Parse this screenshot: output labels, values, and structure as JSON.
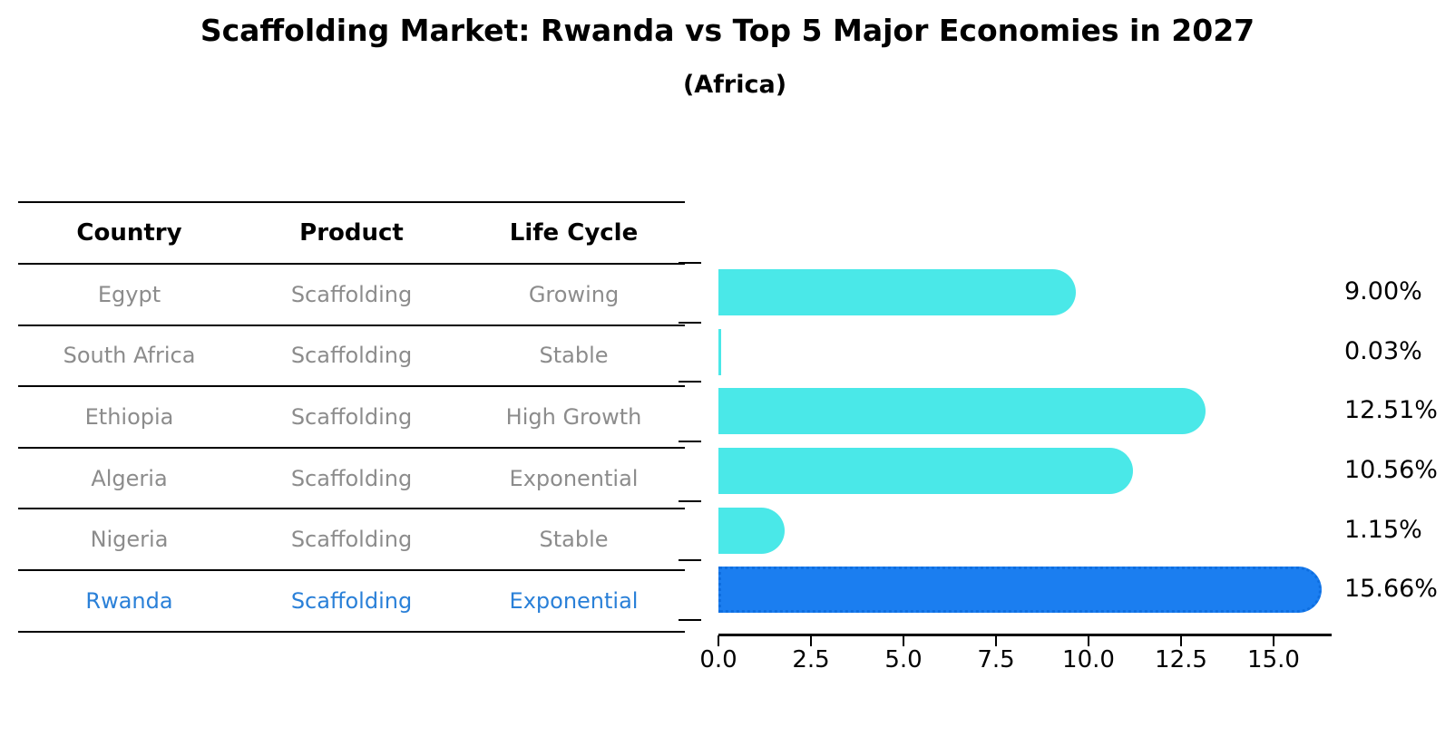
{
  "title": "Scaffolding Market: Rwanda vs Top 5 Major Economies in 2027",
  "subtitle": "(Africa)",
  "table": {
    "headers": [
      "Country",
      "Product",
      "Life Cycle"
    ],
    "rows": [
      {
        "country": "Egypt",
        "product": "Scaffolding",
        "life_cycle": "Growing"
      },
      {
        "country": "South Africa",
        "product": "Scaffolding",
        "life_cycle": "Stable"
      },
      {
        "country": "Ethiopia",
        "product": "Scaffolding",
        "life_cycle": "High Growth"
      },
      {
        "country": "Algeria",
        "product": "Scaffolding",
        "life_cycle": "Exponential"
      },
      {
        "country": "Nigeria",
        "product": "Scaffolding",
        "life_cycle": "Stable"
      },
      {
        "country": "Rwanda",
        "product": "Scaffolding",
        "life_cycle": "Exponential"
      }
    ]
  },
  "chart_data": {
    "type": "bar",
    "orientation": "horizontal",
    "title": "Scaffolding Market: Rwanda vs Top 5 Major Economies in 2027",
    "subtitle": "(Africa)",
    "categories": [
      "Egypt",
      "South Africa",
      "Ethiopia",
      "Algeria",
      "Nigeria",
      "Rwanda"
    ],
    "values": [
      9.0,
      0.03,
      12.51,
      10.56,
      1.15,
      15.66
    ],
    "value_labels": [
      "9.00%",
      "0.03%",
      "12.51%",
      "10.56%",
      "1.15%",
      "15.66%"
    ],
    "x_ticks": [
      "0.0",
      "2.5",
      "5.0",
      "7.5",
      "10.0",
      "12.5",
      "15.0"
    ],
    "x_tick_values": [
      0,
      2.5,
      5,
      7.5,
      10,
      12.5,
      15
    ],
    "xlim": [
      0,
      16.5
    ],
    "grid": false,
    "legend": false,
    "highlight_index": 5,
    "bar_color": "#4ae8e8",
    "highlight_color": "#1b7ef0",
    "highlight_text_color": "#2a80d8",
    "table_text_color": "#8c8c8c"
  }
}
